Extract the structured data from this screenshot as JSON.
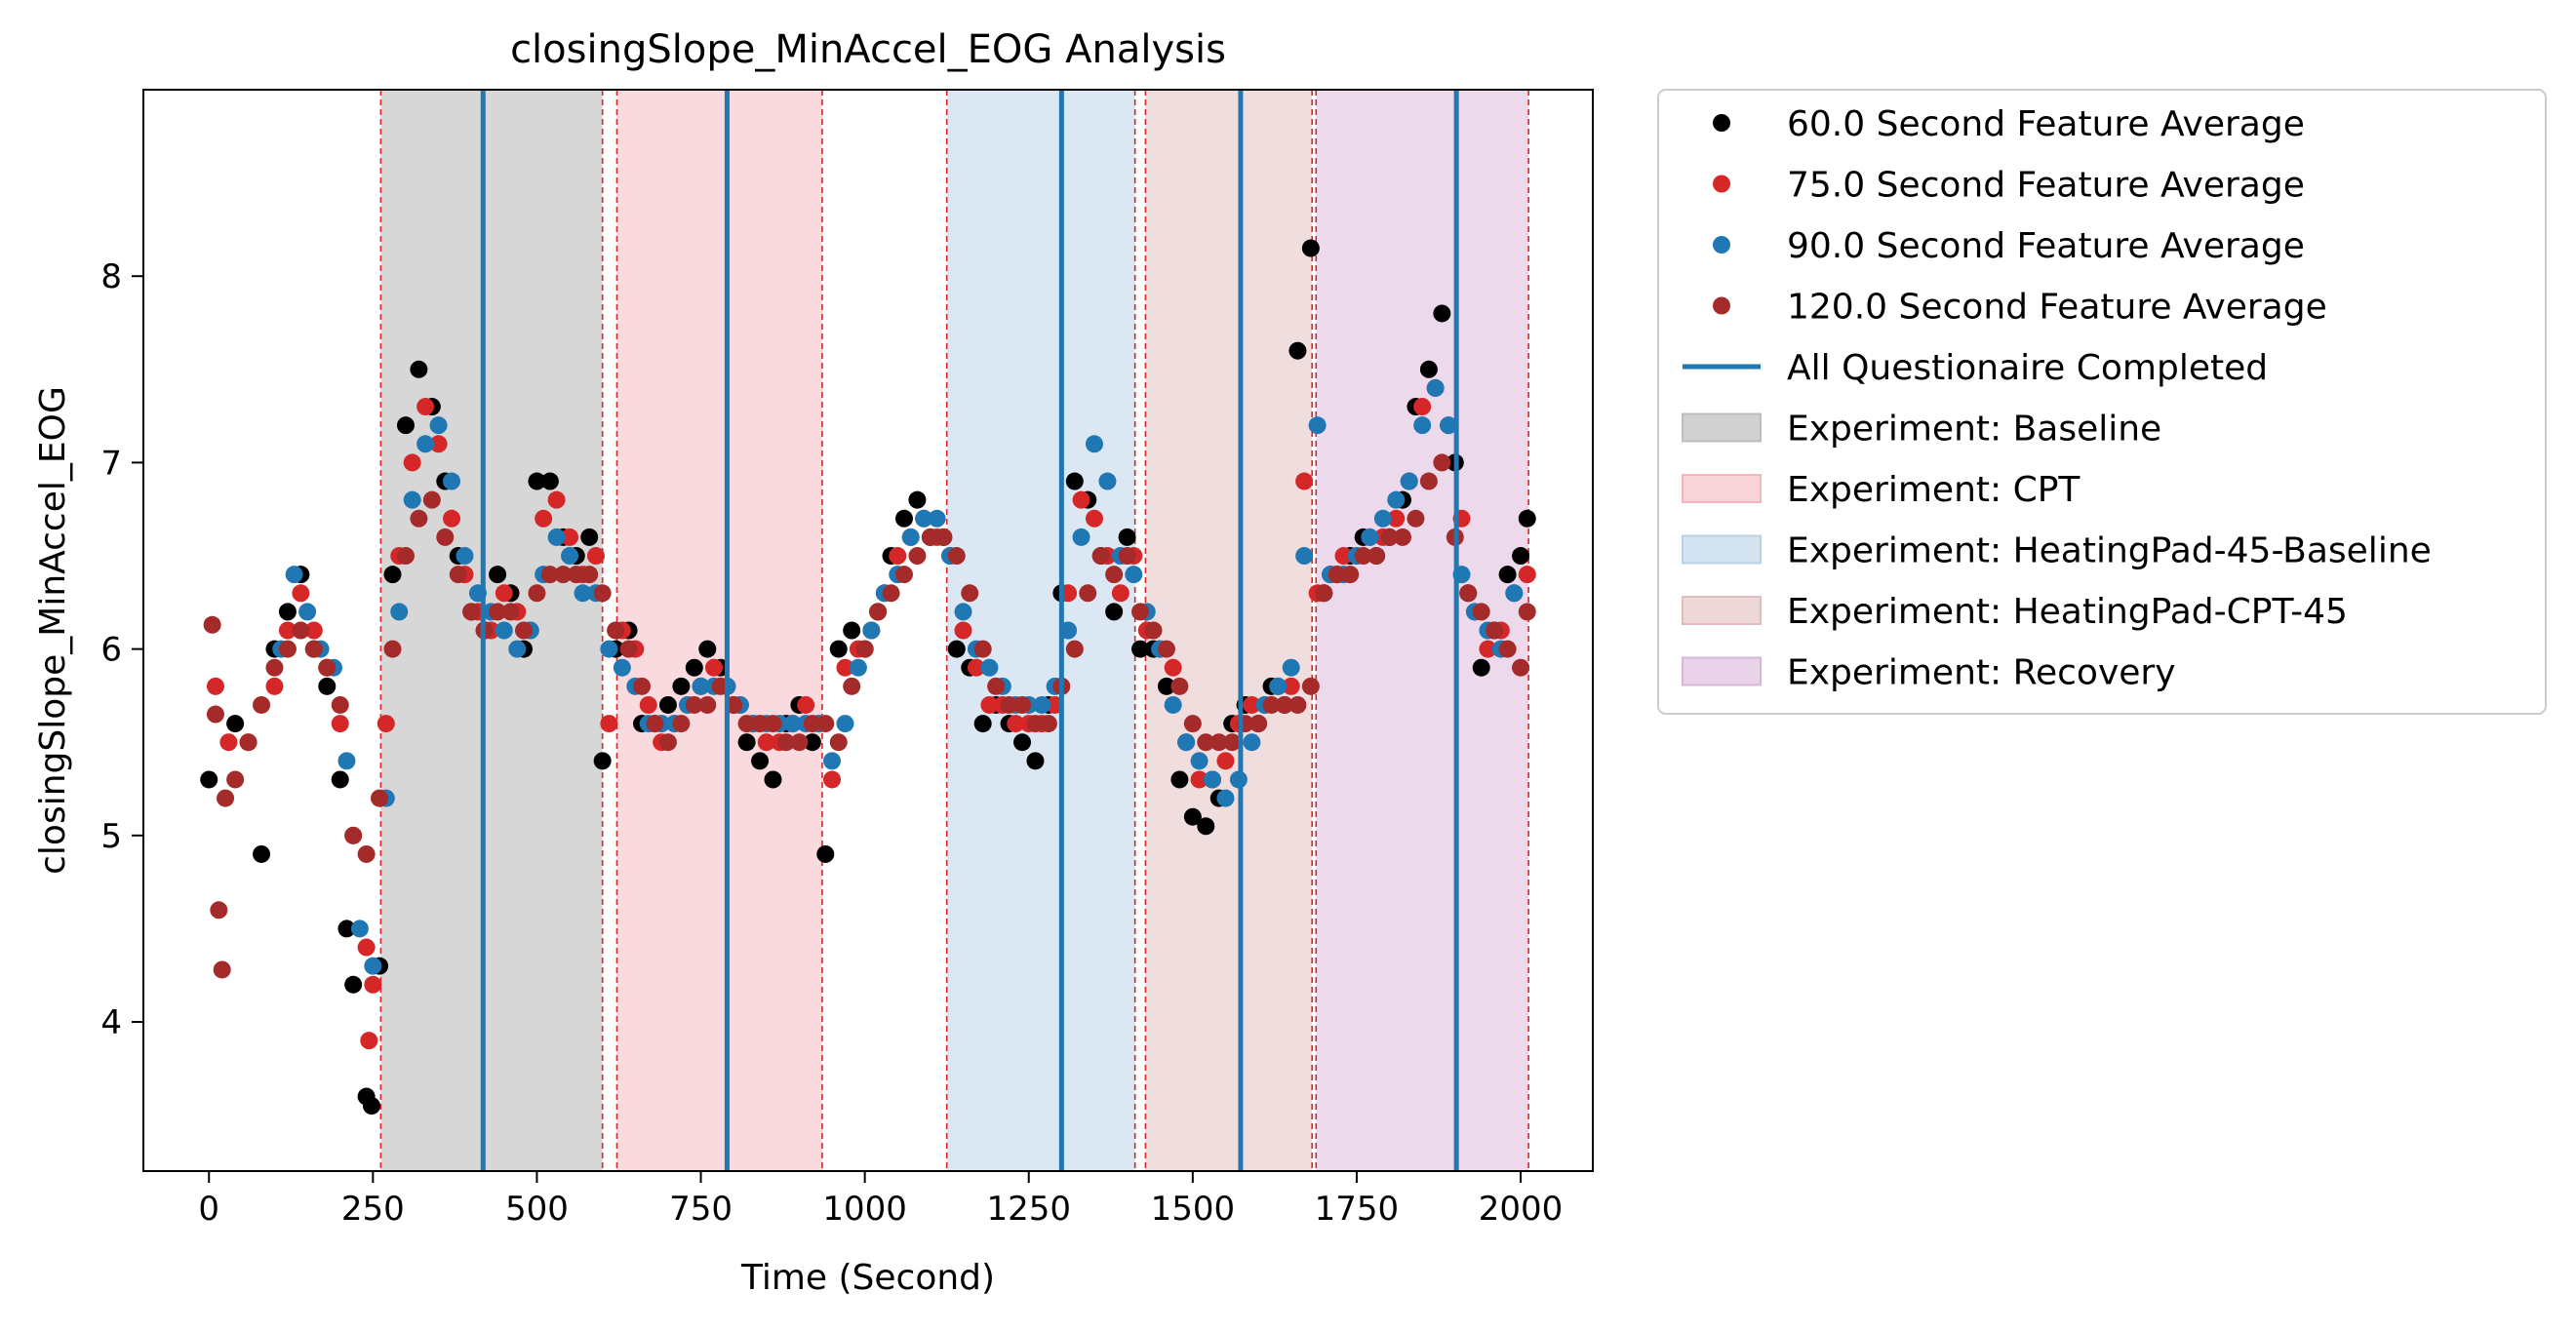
{
  "chart_data": {
    "type": "scatter",
    "title": "closingSlope_MinAccel_EOG Analysis",
    "xlabel": "Time (Second)",
    "ylabel": "closingSlope_MinAccel_EOG",
    "xlim": [
      -100,
      2110
    ],
    "ylim": [
      3.2,
      9.0
    ],
    "xticks": [
      0,
      250,
      500,
      750,
      1000,
      1250,
      1500,
      1750,
      2000
    ],
    "xtick_labels": [
      "0",
      "250",
      "500",
      "750",
      "1000",
      "1250",
      "1500",
      "1750",
      "2000"
    ],
    "yticks": [
      4,
      5,
      6,
      7,
      8
    ],
    "ytick_labels": [
      "4",
      "5",
      "6",
      "7",
      "8"
    ],
    "grid": false,
    "legend_position": "outside-right-top",
    "regions": [
      {
        "name": "Experiment: Baseline",
        "start": 262,
        "end": 600,
        "color": "#bdbdbd",
        "opacity": 0.6
      },
      {
        "name": "Experiment: CPT",
        "start": 622,
        "end": 935,
        "color": "#f4b6bd",
        "opacity": 0.5
      },
      {
        "name": "Experiment: HeatingPad-45-Baseline",
        "start": 1125,
        "end": 1412,
        "color": "#b7d0e6",
        "opacity": 0.5
      },
      {
        "name": "Experiment: HeatingPad-CPT-45",
        "start": 1428,
        "end": 1682,
        "color": "#e2bcbc",
        "opacity": 0.5
      },
      {
        "name": "Experiment: Recovery",
        "start": 1688,
        "end": 2012,
        "color": "#d9b5da",
        "opacity": 0.5
      }
    ],
    "boundary_lines": [
      262,
      600,
      622,
      935,
      1125,
      1412,
      1428,
      1682,
      1688,
      2012
    ],
    "questionnaire_lines": [
      418,
      790,
      1300,
      1573,
      1902
    ],
    "series": [
      {
        "name": "60.0 Second Feature Average",
        "color": "#000000",
        "x": [
          0,
          40,
          80,
          100,
          120,
          140,
          160,
          180,
          200,
          210,
          220,
          240,
          248,
          260,
          280,
          300,
          320,
          340,
          360,
          380,
          400,
          420,
          440,
          460,
          480,
          500,
          520,
          540,
          560,
          580,
          600,
          620,
          640,
          660,
          680,
          700,
          720,
          740,
          760,
          780,
          800,
          820,
          840,
          860,
          880,
          900,
          920,
          940,
          960,
          980,
          1000,
          1020,
          1040,
          1060,
          1080,
          1100,
          1120,
          1140,
          1160,
          1180,
          1200,
          1220,
          1240,
          1260,
          1280,
          1300,
          1320,
          1340,
          1360,
          1380,
          1400,
          1420,
          1440,
          1460,
          1480,
          1500,
          1520,
          1540,
          1560,
          1580,
          1600,
          1620,
          1640,
          1660,
          1680,
          1700,
          1720,
          1740,
          1760,
          1780,
          1800,
          1820,
          1840,
          1860,
          1880,
          1900,
          1920,
          1940,
          1960,
          1980,
          2000,
          2010
        ],
        "y": [
          5.3,
          5.6,
          4.9,
          6.0,
          6.2,
          6.4,
          6.0,
          5.8,
          5.3,
          4.5,
          4.2,
          3.6,
          3.55,
          4.3,
          6.4,
          7.2,
          7.5,
          7.3,
          6.9,
          6.5,
          6.2,
          6.1,
          6.4,
          6.3,
          6.0,
          6.9,
          6.9,
          6.6,
          6.5,
          6.6,
          5.4,
          6.0,
          6.1,
          5.6,
          5.6,
          5.7,
          5.8,
          5.9,
          6.0,
          5.9,
          5.7,
          5.5,
          5.4,
          5.3,
          5.6,
          5.7,
          5.5,
          4.9,
          6.0,
          6.1,
          6.0,
          6.2,
          6.5,
          6.7,
          6.8,
          6.6,
          6.6,
          6.0,
          5.9,
          5.6,
          5.7,
          5.6,
          5.5,
          5.4,
          5.7,
          6.3,
          6.9,
          6.8,
          6.5,
          6.2,
          6.6,
          6.0,
          6.0,
          5.8,
          5.3,
          5.1,
          5.05,
          5.2,
          5.6,
          5.7,
          5.6,
          5.8,
          5.7,
          7.6,
          8.15,
          6.3,
          6.4,
          6.5,
          6.6,
          6.5,
          6.6,
          6.8,
          7.3,
          7.5,
          7.8,
          7.0,
          6.3,
          5.9,
          6.1,
          6.4,
          6.5,
          6.7
        ]
      },
      {
        "name": "75.0 Second Feature Average",
        "color": "#d62728",
        "x": [
          10,
          30,
          60,
          100,
          120,
          140,
          160,
          180,
          200,
          220,
          240,
          244,
          250,
          270,
          290,
          310,
          330,
          350,
          370,
          390,
          410,
          430,
          450,
          470,
          490,
          510,
          530,
          550,
          570,
          590,
          610,
          630,
          650,
          670,
          690,
          710,
          730,
          750,
          770,
          790,
          810,
          830,
          850,
          870,
          890,
          910,
          930,
          950,
          970,
          990,
          1010,
          1030,
          1050,
          1070,
          1090,
          1110,
          1130,
          1150,
          1170,
          1190,
          1210,
          1230,
          1250,
          1270,
          1290,
          1310,
          1330,
          1350,
          1370,
          1390,
          1410,
          1430,
          1450,
          1470,
          1490,
          1510,
          1530,
          1550,
          1570,
          1590,
          1610,
          1630,
          1650,
          1670,
          1690,
          1710,
          1730,
          1750,
          1770,
          1790,
          1810,
          1830,
          1850,
          1870,
          1890,
          1910,
          1930,
          1950,
          1970,
          1990,
          2010
        ],
        "y": [
          5.8,
          5.5,
          5.5,
          5.8,
          6.1,
          6.3,
          6.1,
          5.9,
          5.6,
          5.0,
          4.4,
          3.9,
          4.2,
          5.6,
          6.5,
          7.0,
          7.3,
          7.1,
          6.7,
          6.4,
          6.2,
          6.1,
          6.3,
          6.2,
          6.1,
          6.7,
          6.8,
          6.6,
          6.4,
          6.5,
          5.6,
          6.1,
          6.0,
          5.7,
          5.5,
          5.6,
          5.7,
          5.8,
          5.9,
          5.8,
          5.7,
          5.6,
          5.5,
          5.5,
          5.6,
          5.7,
          5.6,
          5.3,
          5.9,
          6.0,
          6.1,
          6.3,
          6.5,
          6.6,
          6.7,
          6.6,
          6.5,
          6.1,
          5.9,
          5.7,
          5.7,
          5.6,
          5.6,
          5.6,
          5.7,
          6.3,
          6.8,
          6.7,
          6.5,
          6.3,
          6.5,
          6.1,
          6.0,
          5.9,
          5.5,
          5.3,
          5.3,
          5.4,
          5.6,
          5.7,
          5.7,
          5.8,
          5.8,
          6.9,
          6.3,
          6.4,
          6.5,
          6.5,
          6.6,
          6.6,
          6.7,
          6.9,
          7.3,
          7.4,
          7.2,
          6.7,
          6.2,
          6.0,
          6.1,
          6.3,
          6.4
        ]
      },
      {
        "name": "90.0 Second Feature Average",
        "color": "#1f77b4",
        "x": [
          110,
          130,
          150,
          170,
          190,
          210,
          230,
          250,
          270,
          290,
          310,
          330,
          350,
          370,
          390,
          410,
          430,
          450,
          470,
          490,
          510,
          530,
          550,
          570,
          590,
          610,
          630,
          650,
          670,
          690,
          710,
          730,
          750,
          770,
          790,
          810,
          830,
          850,
          870,
          890,
          910,
          930,
          950,
          970,
          990,
          1010,
          1030,
          1050,
          1070,
          1090,
          1110,
          1130,
          1150,
          1170,
          1190,
          1210,
          1230,
          1250,
          1270,
          1290,
          1310,
          1330,
          1350,
          1370,
          1390,
          1410,
          1430,
          1450,
          1470,
          1490,
          1510,
          1530,
          1550,
          1570,
          1590,
          1610,
          1630,
          1650,
          1670,
          1690,
          1710,
          1730,
          1750,
          1770,
          1790,
          1810,
          1830,
          1850,
          1870,
          1890,
          1910,
          1930,
          1950,
          1970,
          1990
        ],
        "y": [
          6.0,
          6.4,
          6.2,
          6.0,
          5.9,
          5.4,
          4.5,
          4.3,
          5.2,
          6.2,
          6.8,
          7.1,
          7.2,
          6.9,
          6.5,
          6.3,
          6.2,
          6.1,
          6.0,
          6.1,
          6.4,
          6.6,
          6.5,
          6.3,
          6.3,
          6.0,
          5.9,
          5.8,
          5.6,
          5.6,
          5.6,
          5.7,
          5.8,
          5.8,
          5.8,
          5.7,
          5.6,
          5.6,
          5.6,
          5.6,
          5.6,
          5.6,
          5.4,
          5.6,
          5.9,
          6.1,
          6.3,
          6.4,
          6.6,
          6.7,
          6.7,
          6.5,
          6.2,
          6.0,
          5.9,
          5.8,
          5.7,
          5.7,
          5.7,
          5.8,
          6.1,
          6.6,
          7.1,
          6.9,
          6.5,
          6.4,
          6.2,
          6.0,
          5.7,
          5.5,
          5.4,
          5.3,
          5.2,
          5.3,
          5.5,
          5.7,
          5.8,
          5.9,
          6.5,
          7.2,
          6.4,
          6.4,
          6.5,
          6.6,
          6.7,
          6.8,
          6.9,
          7.2,
          7.4,
          7.2,
          6.4,
          6.2,
          6.1,
          6.0,
          6.3
        ]
      },
      {
        "name": "120.0 Second Feature Average",
        "color": "#a52a2a",
        "x": [
          5,
          10,
          15,
          20,
          25,
          40,
          60,
          80,
          100,
          120,
          140,
          160,
          180,
          200,
          220,
          240,
          260,
          280,
          300,
          320,
          340,
          360,
          380,
          400,
          420,
          440,
          460,
          480,
          500,
          520,
          540,
          560,
          580,
          600,
          620,
          640,
          660,
          680,
          700,
          720,
          740,
          760,
          780,
          800,
          820,
          840,
          860,
          880,
          900,
          920,
          940,
          960,
          980,
          1000,
          1020,
          1040,
          1060,
          1080,
          1100,
          1120,
          1140,
          1160,
          1180,
          1200,
          1220,
          1240,
          1260,
          1280,
          1300,
          1320,
          1340,
          1360,
          1380,
          1400,
          1420,
          1440,
          1460,
          1480,
          1500,
          1520,
          1540,
          1560,
          1580,
          1600,
          1620,
          1640,
          1660,
          1680,
          1700,
          1720,
          1740,
          1760,
          1780,
          1800,
          1820,
          1840,
          1860,
          1880,
          1900,
          1920,
          1940,
          1960,
          1980,
          2000,
          2010
        ],
        "y": [
          6.13,
          5.65,
          4.6,
          4.28,
          5.2,
          5.3,
          5.5,
          5.7,
          5.9,
          6.0,
          6.1,
          6.0,
          5.9,
          5.7,
          5.0,
          4.9,
          5.2,
          6.0,
          6.5,
          6.7,
          6.8,
          6.6,
          6.4,
          6.2,
          6.1,
          6.2,
          6.2,
          6.1,
          6.3,
          6.4,
          6.4,
          6.4,
          6.4,
          6.3,
          6.1,
          6.0,
          5.8,
          5.6,
          5.5,
          5.6,
          5.7,
          5.7,
          5.8,
          5.7,
          5.6,
          5.6,
          5.6,
          5.5,
          5.5,
          5.6,
          5.6,
          5.5,
          5.8,
          6.0,
          6.2,
          6.3,
          6.4,
          6.5,
          6.6,
          6.6,
          6.5,
          6.3,
          6.0,
          5.8,
          5.7,
          5.7,
          5.6,
          5.6,
          5.8,
          6.0,
          6.3,
          6.5,
          6.4,
          6.5,
          6.2,
          6.1,
          6.0,
          5.8,
          5.6,
          5.5,
          5.5,
          5.5,
          5.6,
          5.6,
          5.7,
          5.7,
          5.7,
          5.8,
          6.3,
          6.4,
          6.4,
          6.5,
          6.5,
          6.6,
          6.6,
          6.7,
          6.9,
          7.0,
          6.6,
          6.3,
          6.2,
          6.1,
          6.0,
          5.9,
          6.2
        ]
      }
    ],
    "legend": [
      {
        "label": "60.0 Second Feature Average",
        "kind": "dot",
        "color": "#000000"
      },
      {
        "label": "75.0 Second Feature Average",
        "kind": "dot",
        "color": "#d62728"
      },
      {
        "label": "90.0 Second Feature Average",
        "kind": "dot",
        "color": "#1f77b4"
      },
      {
        "label": "120.0 Second Feature Average",
        "kind": "dot",
        "color": "#a52a2a"
      },
      {
        "label": "All Questionaire Completed",
        "kind": "line",
        "color": "#1f77b4"
      },
      {
        "label": "Experiment: Baseline",
        "kind": "patch",
        "color": "#bdbdbd"
      },
      {
        "label": "Experiment: CPT",
        "kind": "patch",
        "color": "#f4b6bd"
      },
      {
        "label": "Experiment: HeatingPad-45-Baseline",
        "kind": "patch",
        "color": "#b7d0e6"
      },
      {
        "label": "Experiment: HeatingPad-CPT-45",
        "kind": "patch",
        "color": "#e2bcbc"
      },
      {
        "label": "Experiment: Recovery",
        "kind": "patch",
        "color": "#d9b5da"
      }
    ]
  }
}
